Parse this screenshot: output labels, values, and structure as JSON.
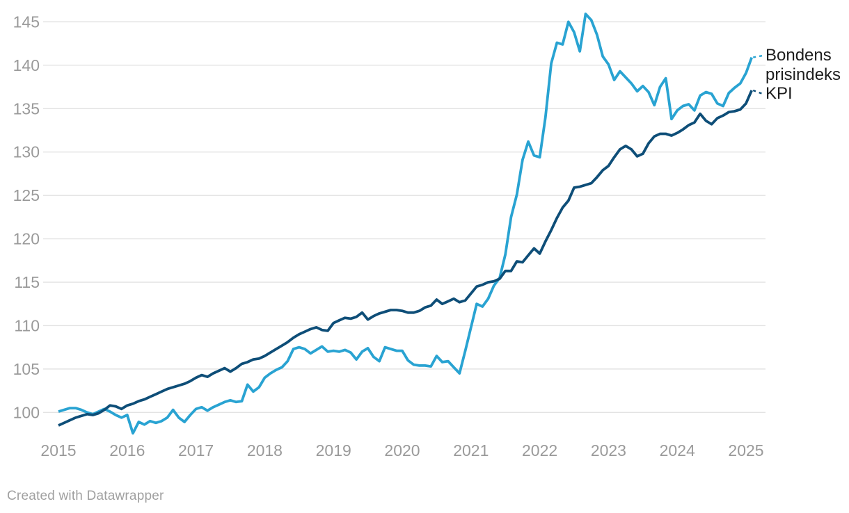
{
  "chart_data": {
    "type": "line",
    "title": "",
    "x_start": "2015-01",
    "x_end": "2025-02",
    "x_frequency": "monthly",
    "x_tick_labels": [
      "2015",
      "2016",
      "2017",
      "2018",
      "2019",
      "2020",
      "2021",
      "2022",
      "2023",
      "2024",
      "2025"
    ],
    "y_ticks": [
      100,
      105,
      110,
      115,
      120,
      125,
      130,
      135,
      140,
      145
    ],
    "ylim": [
      97.5,
      146.5
    ],
    "grid": "horizontal-only",
    "legend_position": "end-of-line-right",
    "series": [
      {
        "name": "Bondens prisindeks",
        "label_lines": [
          "Bondens",
          "prisindeks"
        ],
        "color": "#29a3d2",
        "values": [
          100.1,
          100.3,
          100.5,
          100.5,
          100.3,
          100.0,
          99.8,
          100.1,
          100.4,
          100.1,
          99.7,
          99.4,
          99.7,
          97.6,
          98.9,
          98.6,
          99.0,
          98.8,
          99.0,
          99.4,
          100.3,
          99.4,
          98.9,
          99.7,
          100.4,
          100.6,
          100.2,
          100.6,
          100.9,
          101.2,
          101.4,
          101.2,
          101.3,
          103.2,
          102.4,
          102.9,
          104.0,
          104.5,
          104.9,
          105.2,
          105.9,
          107.3,
          107.5,
          107.3,
          106.8,
          107.2,
          107.6,
          107.0,
          107.1,
          107.0,
          107.2,
          106.9,
          106.1,
          107.0,
          107.4,
          106.4,
          105.9,
          107.5,
          107.3,
          107.1,
          107.1,
          106.0,
          105.5,
          105.4,
          105.4,
          105.3,
          106.5,
          105.8,
          105.9,
          105.2,
          104.5,
          107.1,
          109.8,
          112.5,
          112.2,
          113.1,
          114.6,
          115.5,
          118.2,
          122.5,
          125.1,
          129.1,
          131.2,
          129.6,
          129.4,
          134.0,
          140.2,
          142.6,
          142.4,
          145.0,
          143.8,
          141.6,
          145.9,
          145.2,
          143.5,
          141.0,
          140.1,
          138.3,
          139.3,
          138.6,
          137.9,
          137.0,
          137.6,
          136.9,
          135.4,
          137.5,
          138.5,
          133.8,
          134.8,
          135.3,
          135.5,
          134.8,
          136.5,
          136.9,
          136.7,
          135.6,
          135.3,
          136.8,
          137.4,
          137.9,
          139.1,
          140.9
        ]
      },
      {
        "name": "KPI",
        "label_lines": [
          "KPI"
        ],
        "color": "#0e4e78",
        "values": [
          98.5,
          98.8,
          99.1,
          99.4,
          99.6,
          99.8,
          99.7,
          99.9,
          100.3,
          100.8,
          100.7,
          100.4,
          100.8,
          101.0,
          101.3,
          101.5,
          101.8,
          102.1,
          102.4,
          102.7,
          102.9,
          103.1,
          103.3,
          103.6,
          104.0,
          104.3,
          104.1,
          104.5,
          104.8,
          105.1,
          104.7,
          105.1,
          105.6,
          105.8,
          106.1,
          106.2,
          106.5,
          106.9,
          107.3,
          107.7,
          108.1,
          108.6,
          109.0,
          109.3,
          109.6,
          109.8,
          109.5,
          109.4,
          110.3,
          110.6,
          110.9,
          110.8,
          111.0,
          111.5,
          110.7,
          111.1,
          111.4,
          111.6,
          111.8,
          111.8,
          111.7,
          111.5,
          111.5,
          111.7,
          112.1,
          112.3,
          113.0,
          112.5,
          112.8,
          113.1,
          112.7,
          112.9,
          113.7,
          114.5,
          114.7,
          115.0,
          115.1,
          115.4,
          116.3,
          116.3,
          117.4,
          117.3,
          118.1,
          118.9,
          118.3,
          119.7,
          121.0,
          122.4,
          123.6,
          124.4,
          125.9,
          126.0,
          126.2,
          126.4,
          127.1,
          127.9,
          128.4,
          129.4,
          130.3,
          130.7,
          130.3,
          129.5,
          129.8,
          131.0,
          131.8,
          132.1,
          132.1,
          131.9,
          132.2,
          132.6,
          133.1,
          133.4,
          134.4,
          133.6,
          133.2,
          133.9,
          134.2,
          134.6,
          134.7,
          134.9,
          135.6,
          137.1
        ]
      }
    ]
  },
  "footer": {
    "credit": "Created with Datawrapper"
  },
  "colors": {
    "background": "#ffffff",
    "gridline": "#e3e3e3",
    "axis_text": "#9a9a9a",
    "label_text": "#1d1d1d",
    "footer_text": "#a0a0a0"
  }
}
